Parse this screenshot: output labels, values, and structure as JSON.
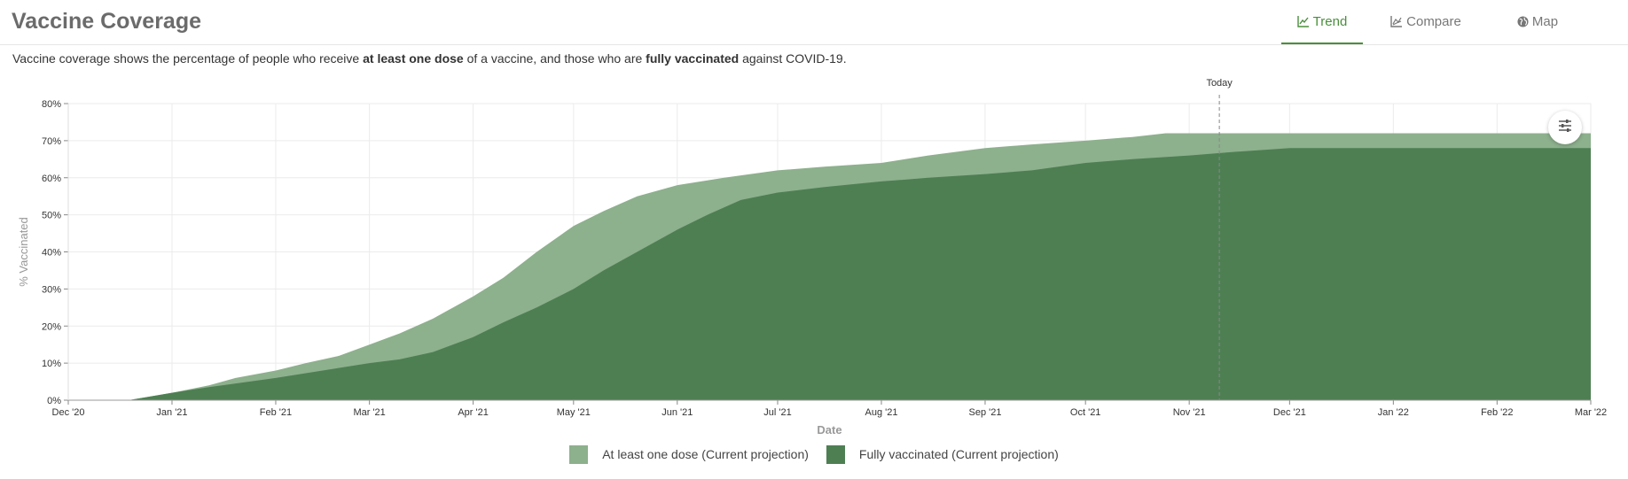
{
  "header": {
    "title": "Vaccine Coverage",
    "tabs": [
      {
        "label": "Trend",
        "icon": "line-chart-icon",
        "active": true
      },
      {
        "label": "Compare",
        "icon": "compare-chart-icon",
        "active": false
      },
      {
        "label": "Map",
        "icon": "globe-icon",
        "active": false
      }
    ]
  },
  "description": {
    "part1": "Vaccine coverage shows the percentage of people who receive ",
    "bold1": "at least one dose",
    "part2": " of a vaccine, and those who are ",
    "bold2": "fully vaccinated",
    "part3": " against COVID-19."
  },
  "settings": {
    "icon": "sliders-icon"
  },
  "colors": {
    "one_dose": "#8db08d",
    "fully": "#4e7f53",
    "active_tab": "#4a8f3c",
    "grid": "#ebebeb"
  },
  "chart_data": {
    "type": "area",
    "x_label": "Date",
    "y_label": "% Vaccinated",
    "x_range": [
      "2020-12-01",
      "2022-03-01"
    ],
    "y_range": [
      0,
      80
    ],
    "x_ticks": [
      {
        "date": "2020-12-01",
        "label": "Dec '20"
      },
      {
        "date": "2021-01-01",
        "label": "Jan '21"
      },
      {
        "date": "2021-02-01",
        "label": "Feb '21"
      },
      {
        "date": "2021-03-01",
        "label": "Mar '21"
      },
      {
        "date": "2021-04-01",
        "label": "Apr '21"
      },
      {
        "date": "2021-05-01",
        "label": "May '21"
      },
      {
        "date": "2021-06-01",
        "label": "Jun '21"
      },
      {
        "date": "2021-07-01",
        "label": "Jul '21"
      },
      {
        "date": "2021-08-01",
        "label": "Aug '21"
      },
      {
        "date": "2021-09-01",
        "label": "Sep '21"
      },
      {
        "date": "2021-10-01",
        "label": "Oct '21"
      },
      {
        "date": "2021-11-01",
        "label": "Nov '21"
      },
      {
        "date": "2021-12-01",
        "label": "Dec '21"
      },
      {
        "date": "2022-01-01",
        "label": "Jan '22"
      },
      {
        "date": "2022-02-01",
        "label": "Feb '22"
      },
      {
        "date": "2022-03-01",
        "label": "Mar '22"
      }
    ],
    "y_ticks": [
      {
        "value": 0,
        "label": "0%"
      },
      {
        "value": 10,
        "label": "10%"
      },
      {
        "value": 20,
        "label": "20%"
      },
      {
        "value": 30,
        "label": "30%"
      },
      {
        "value": 40,
        "label": "40%"
      },
      {
        "value": 50,
        "label": "50%"
      },
      {
        "value": 60,
        "label": "60%"
      },
      {
        "value": 70,
        "label": "70%"
      },
      {
        "value": 80,
        "label": "80%"
      }
    ],
    "today": {
      "date": "2021-11-10",
      "label": "Today"
    },
    "grid": true,
    "legend_position": "bottom",
    "series": [
      {
        "name": "At least one dose (Current projection)",
        "color": "#8db08d",
        "points": [
          [
            "2020-12-01",
            0
          ],
          [
            "2020-12-19",
            0
          ],
          [
            "2021-01-01",
            2
          ],
          [
            "2021-01-12",
            4
          ],
          [
            "2021-01-20",
            6
          ],
          [
            "2021-02-01",
            8
          ],
          [
            "2021-02-10",
            10
          ],
          [
            "2021-02-20",
            12
          ],
          [
            "2021-03-01",
            15
          ],
          [
            "2021-03-10",
            18
          ],
          [
            "2021-03-20",
            22
          ],
          [
            "2021-04-01",
            28
          ],
          [
            "2021-04-10",
            33
          ],
          [
            "2021-04-20",
            40
          ],
          [
            "2021-05-01",
            47
          ],
          [
            "2021-05-10",
            51
          ],
          [
            "2021-05-20",
            55
          ],
          [
            "2021-06-01",
            58
          ],
          [
            "2021-06-15",
            60
          ],
          [
            "2021-07-01",
            62
          ],
          [
            "2021-07-15",
            63
          ],
          [
            "2021-08-01",
            64
          ],
          [
            "2021-08-15",
            66
          ],
          [
            "2021-09-01",
            68
          ],
          [
            "2021-09-15",
            69
          ],
          [
            "2021-10-01",
            70
          ],
          [
            "2021-10-15",
            71
          ],
          [
            "2021-10-25",
            72
          ],
          [
            "2022-03-01",
            72
          ]
        ]
      },
      {
        "name": "Fully vaccinated (Current projection)",
        "color": "#4e7f53",
        "points": [
          [
            "2020-12-01",
            0
          ],
          [
            "2020-12-19",
            0
          ],
          [
            "2021-01-01",
            2
          ],
          [
            "2021-01-12",
            3.5
          ],
          [
            "2021-02-01",
            6
          ],
          [
            "2021-03-01",
            10
          ],
          [
            "2021-03-10",
            11
          ],
          [
            "2021-03-20",
            13
          ],
          [
            "2021-04-01",
            17
          ],
          [
            "2021-04-10",
            21
          ],
          [
            "2021-04-20",
            25
          ],
          [
            "2021-05-01",
            30
          ],
          [
            "2021-05-10",
            35
          ],
          [
            "2021-05-20",
            40
          ],
          [
            "2021-06-01",
            46
          ],
          [
            "2021-06-10",
            50
          ],
          [
            "2021-06-20",
            54
          ],
          [
            "2021-07-01",
            56
          ],
          [
            "2021-07-15",
            57.5
          ],
          [
            "2021-08-01",
            59
          ],
          [
            "2021-08-15",
            60
          ],
          [
            "2021-09-01",
            61
          ],
          [
            "2021-09-15",
            62
          ],
          [
            "2021-10-01",
            64
          ],
          [
            "2021-10-15",
            65
          ],
          [
            "2021-11-01",
            66
          ],
          [
            "2021-11-15",
            67
          ],
          [
            "2021-12-01",
            68
          ],
          [
            "2022-03-01",
            68
          ]
        ]
      }
    ]
  }
}
